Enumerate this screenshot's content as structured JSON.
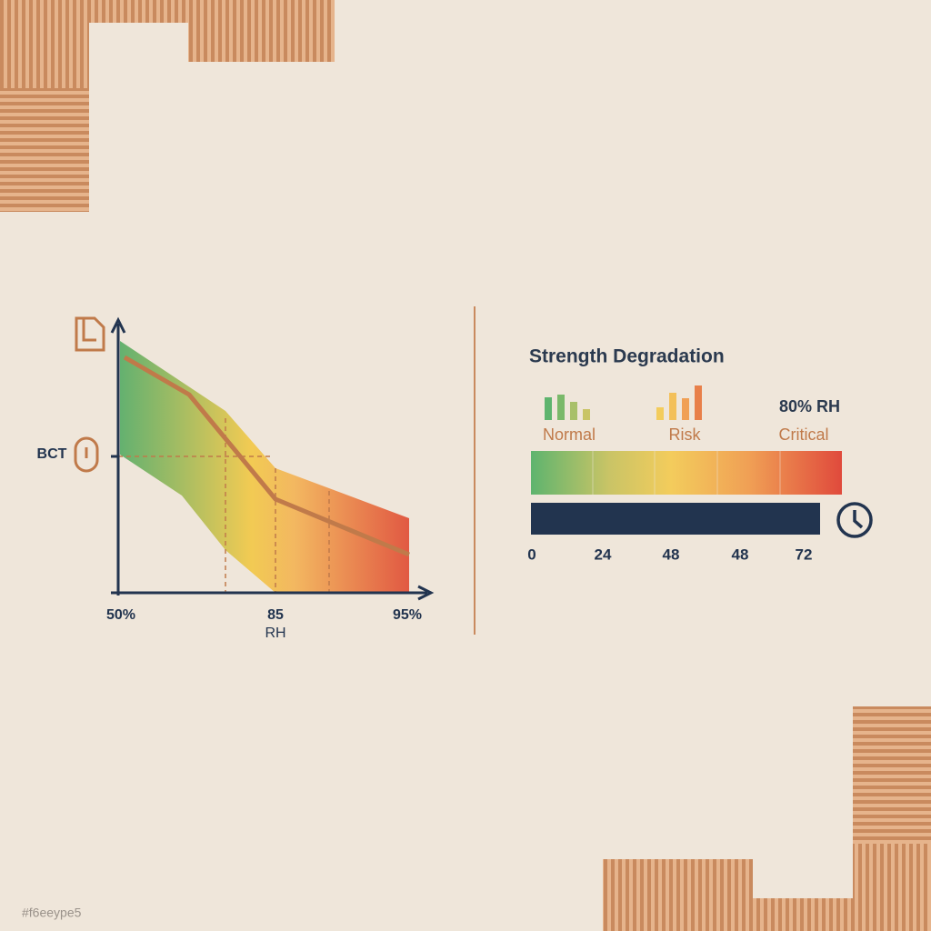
{
  "left_chart": {
    "y_label": "BCT",
    "x_labels": [
      "50%",
      "85",
      "95%"
    ],
    "x_title": "RH"
  },
  "right_panel": {
    "title": "Strength Degradation",
    "zones": [
      "Normal",
      "Risk",
      "Critical"
    ],
    "condition": "80% RH",
    "time_ticks": [
      0,
      24,
      48,
      48,
      72
    ]
  },
  "footer": "#f6eeype5"
}
